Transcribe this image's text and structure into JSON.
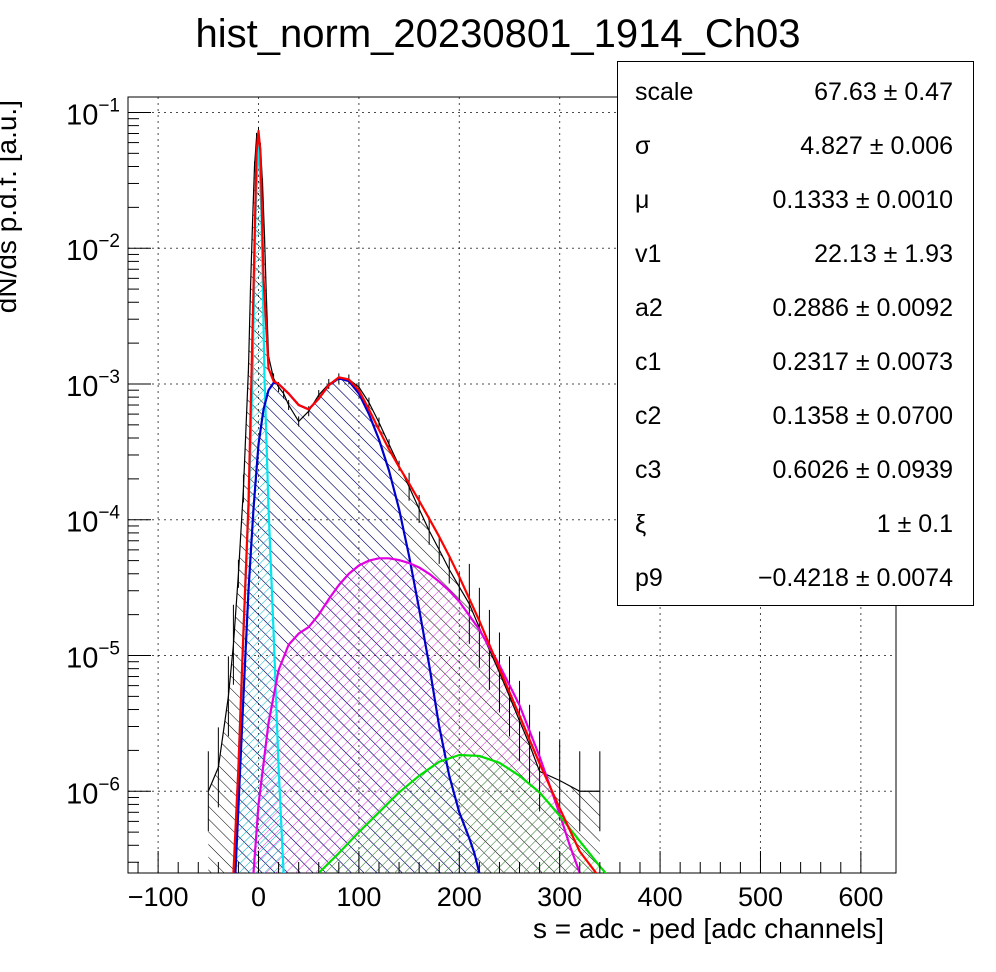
{
  "chart_data": {
    "type": "line",
    "title": "hist_norm_20230801_1914_Ch03",
    "xlabel": "s = adc - ped [adc channels]",
    "ylabel": "dN/ds p.d.f. [a.u.]",
    "xlim": [
      -130,
      635
    ],
    "ylim": [
      2.5e-07,
      0.13
    ],
    "yscale": "log",
    "grid": true,
    "x_ticks": [
      -100,
      0,
      100,
      200,
      300,
      400,
      500,
      600
    ],
    "x_tick_labels": [
      "−100",
      "0",
      "100",
      "200",
      "300",
      "400",
      "500",
      "600"
    ],
    "y_ticks": [
      1e-06,
      1e-05,
      0.0001,
      0.001,
      0.01,
      0.1
    ],
    "y_tick_exponents": [
      "−6",
      "−5",
      "−4",
      "−3",
      "−2",
      "−1"
    ],
    "y_tick_base": "10",
    "series": [
      {
        "color": "#000000",
        "kind": "histogram",
        "x": [
          -50,
          -40,
          -30,
          -25,
          -20,
          -15,
          -10,
          -8,
          -6,
          -4,
          -2,
          0,
          2,
          4,
          6,
          8,
          10,
          15,
          20,
          25,
          30,
          40,
          50,
          60,
          70,
          80,
          90,
          100,
          110,
          120,
          130,
          140,
          150,
          160,
          170,
          180,
          190,
          200,
          210,
          220,
          230,
          240,
          250,
          260,
          270,
          280,
          300,
          320,
          340
        ],
        "y": [
          1e-06,
          1.5e-06,
          5e-06,
          1.2e-05,
          4e-05,
          0.00017,
          0.0013,
          0.005,
          0.015,
          0.04,
          0.065,
          0.072,
          0.055,
          0.03,
          0.012,
          0.004,
          0.0016,
          0.0011,
          0.00095,
          0.00085,
          0.0007,
          0.00053,
          0.00063,
          0.00083,
          0.001,
          0.0011,
          0.00108,
          0.00095,
          0.00073,
          0.00052,
          0.00036,
          0.00025,
          0.000175,
          0.00012,
          8.3e-05,
          6e-05,
          4.3e-05,
          3.2e-05,
          2.4e-05,
          1.6e-05,
          1.1e-05,
          7.5e-06,
          5e-06,
          3.3e-06,
          2.2e-06,
          1.4e-06,
          1.2e-06,
          1e-06,
          1e-06
        ]
      },
      {
        "color": "#ff0000",
        "kind": "total fit",
        "x": [
          -25,
          -20,
          -15,
          -10,
          -5,
          -2,
          0,
          2,
          5,
          10,
          15,
          20,
          30,
          40,
          50,
          60,
          70,
          80,
          90,
          100,
          110,
          120,
          130,
          140,
          150,
          160,
          170,
          180,
          190,
          200,
          220,
          240,
          260,
          280,
          300,
          320,
          340,
          350
        ],
        "y": [
          2.5e-07,
          1.5e-06,
          1.5e-05,
          0.00013,
          0.005,
          0.05,
          0.073,
          0.05,
          0.006,
          0.0013,
          0.00105,
          0.001,
          0.00085,
          0.0007,
          0.00065,
          0.00078,
          0.00098,
          0.00112,
          0.00108,
          0.0009,
          0.00065,
          0.00046,
          0.00033,
          0.000245,
          0.000185,
          0.000138,
          0.000102,
          7.5e-05,
          5.4e-05,
          3.8e-05,
          1.8e-05,
          8e-06,
          3.6e-06,
          1.6e-06,
          7.5e-07,
          3.6e-07,
          2.3e-07,
          1.8e-07
        ]
      },
      {
        "color": "#00e5ee",
        "kind": "pedestal component",
        "x": [
          -24,
          -20,
          -15,
          -10,
          -6,
          -3,
          0,
          3,
          6,
          10,
          15,
          20,
          25
        ],
        "y": [
          2.5e-07,
          1.5e-06,
          1.5e-05,
          0.00012,
          0.0011,
          0.018,
          0.07,
          0.018,
          0.0011,
          0.00012,
          1.5e-05,
          1.5e-06,
          2.5e-07
        ]
      },
      {
        "color": "#0000cc",
        "kind": "single-photon component",
        "x": [
          -23,
          -15,
          -10,
          -5,
          0,
          5,
          10,
          15,
          20,
          30,
          40,
          50,
          60,
          70,
          80,
          90,
          100,
          110,
          120,
          130,
          140,
          150,
          160,
          170,
          180,
          190,
          200,
          210,
          215,
          220
        ],
        "y": [
          2.5e-07,
          5e-06,
          3e-05,
          0.00012,
          0.00036,
          0.00065,
          0.0009,
          0.00102,
          0.001,
          0.00085,
          0.0007,
          0.00065,
          0.00078,
          0.00098,
          0.0011,
          0.00105,
          0.00085,
          0.0006,
          0.00039,
          0.00023,
          0.00012,
          5.4e-05,
          2.2e-05,
          8.5e-06,
          3e-06,
          1.3e-06,
          7e-07,
          4.5e-07,
          3.5e-07,
          2.5e-07
        ]
      },
      {
        "color": "#e000e0",
        "kind": "two-photon component",
        "x": [
          -5,
          0,
          10,
          20,
          30,
          40,
          50,
          60,
          70,
          80,
          90,
          100,
          110,
          120,
          130,
          140,
          150,
          160,
          170,
          180,
          190,
          200,
          220,
          240,
          260,
          280,
          300,
          310,
          320
        ],
        "y": [
          2.5e-07,
          8e-07,
          3.2e-06,
          7.8e-06,
          1.2e-05,
          1.45e-05,
          1.62e-05,
          2e-05,
          2.6e-05,
          3.3e-05,
          4e-05,
          4.6e-05,
          5e-05,
          5.2e-05,
          5.2e-05,
          5.05e-05,
          4.8e-05,
          4.45e-05,
          4e-05,
          3.5e-05,
          3e-05,
          2.5e-05,
          1.55e-05,
          8.5e-06,
          4.3e-06,
          1.8e-06,
          6.8e-07,
          4e-07,
          2.5e-07
        ]
      },
      {
        "color": "#00dd00",
        "kind": "three-photon component",
        "x": [
          60,
          80,
          100,
          120,
          140,
          160,
          180,
          200,
          220,
          240,
          260,
          280,
          300,
          320,
          340,
          350
        ],
        "y": [
          2.5e-07,
          3.5e-07,
          5e-07,
          7e-07,
          9.8e-07,
          1.3e-06,
          1.65e-06,
          1.85e-06,
          1.82e-06,
          1.62e-06,
          1.3e-06,
          9.8e-07,
          6.6e-07,
          4.3e-07,
          2.8e-07,
          2.3e-07
        ]
      }
    ],
    "legend_placement": "top-right"
  },
  "stats": [
    {
      "name": "scale",
      "value": "67.63 ± 0.47"
    },
    {
      "name": "σ",
      "value": "4.827 ± 0.006"
    },
    {
      "name": "μ",
      "value": "0.1333 ± 0.0010"
    },
    {
      "name": "v1",
      "value": "22.13 ± 1.93"
    },
    {
      "name": "a2",
      "value": "0.2886 ± 0.0092"
    },
    {
      "name": "c1",
      "value": "0.2317 ± 0.0073"
    },
    {
      "name": "c2",
      "value": "0.1358 ± 0.0700"
    },
    {
      "name": "c3",
      "value": "0.6026 ± 0.0939"
    },
    {
      "name": "ξ",
      "value": "1 ± 0.1"
    },
    {
      "name": "p9",
      "value": "−0.4218 ± 0.0074"
    }
  ]
}
